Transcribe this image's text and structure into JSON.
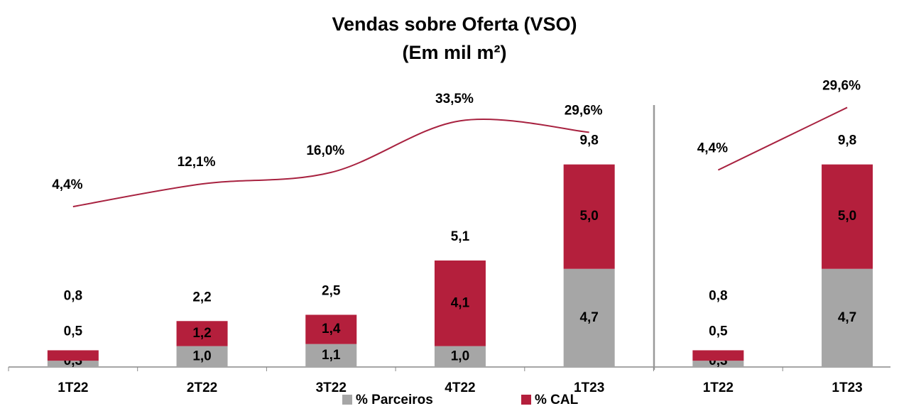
{
  "chart_data": [
    {
      "type": "stacked-bar",
      "title": "Vendas sobre Oferta (VSO)",
      "subtitle": "(Em mil m²)",
      "categories": [
        "1T22",
        "2T22",
        "3T22",
        "4T22",
        "1T23"
      ],
      "ylim": [
        0,
        12
      ],
      "series": [
        {
          "name": "% Parceiros",
          "color": "#a6a6a6",
          "values": [
            0.3,
            1.0,
            1.1,
            1.0,
            4.7
          ],
          "value_labels": [
            "0,3",
            "1,0",
            "1,1",
            "1,0",
            "4,7"
          ]
        },
        {
          "name": "% CAL",
          "color": "#b41f3c",
          "values": [
            0.5,
            1.2,
            1.4,
            4.1,
            5.0
          ],
          "value_labels": [
            "0,5",
            "1,2",
            "1,4",
            "4,1",
            "5,0"
          ]
        }
      ],
      "totals": {
        "values": [
          0.8,
          2.2,
          2.5,
          5.1,
          9.8
        ],
        "value_labels": [
          "0,8",
          "2,2",
          "2,5",
          "5,1",
          "9,8"
        ]
      },
      "line": {
        "color": "#a82240",
        "axis": "y2",
        "values": [
          4.4,
          12.1,
          16.0,
          33.5,
          29.6
        ],
        "value_labels": [
          "4,4%",
          "12,1%",
          "16,0%",
          "33,5%",
          "29,6%"
        ]
      },
      "y2lim": [
        -50,
        35
      ]
    },
    {
      "type": "stacked-bar",
      "categories": [
        "1T22",
        "1T23"
      ],
      "ylim": [
        0,
        12
      ],
      "series": [
        {
          "color": "#a6a6a6",
          "values": [
            0.3,
            4.7
          ],
          "value_labels": [
            "0,3",
            "4,7"
          ]
        },
        {
          "color": "#b41f3c",
          "values": [
            0.5,
            5.0
          ],
          "value_labels": [
            "0,5",
            "5,0"
          ]
        }
      ],
      "totals": {
        "values": [
          0.8,
          9.8
        ],
        "value_labels": [
          "0,8",
          "9,8"
        ]
      },
      "line": {
        "color": "#a82240",
        "axis": "y2",
        "values": [
          4.4,
          29.6
        ],
        "value_labels": [
          "4,4%",
          "29,6%"
        ]
      },
      "y2lim": [
        -75,
        26
      ]
    }
  ]
}
